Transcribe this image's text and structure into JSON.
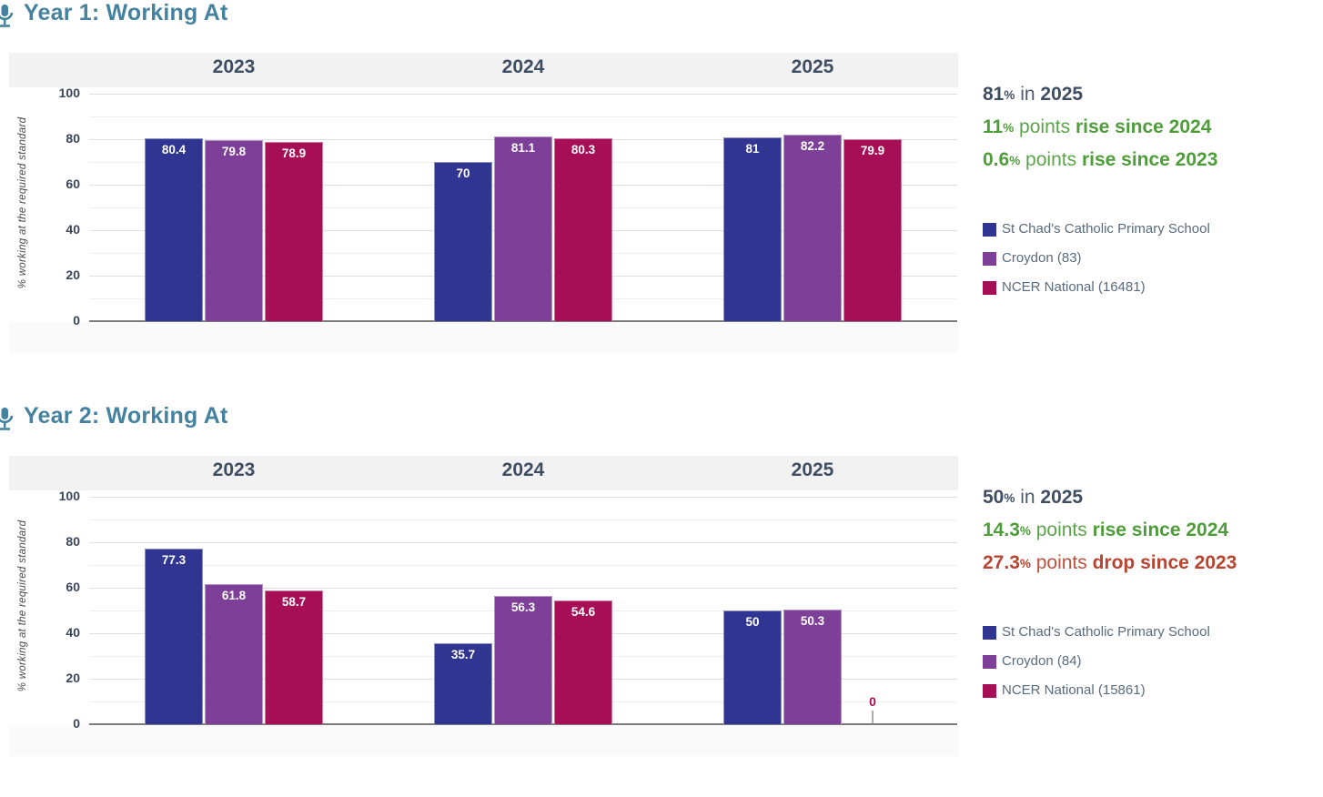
{
  "page": {
    "ylabel_color": "#4a4a4a",
    "title_color": "#44829f"
  },
  "chart_data": [
    {
      "type": "bar",
      "title": "Year 1: Working At",
      "icon": "microphone-icon",
      "ylabel": "% working at the required standard",
      "ylim": [
        0,
        100
      ],
      "yticks": [
        100,
        80,
        60,
        40,
        20,
        0
      ],
      "grid": true,
      "legend_position": "right",
      "categories": [
        "2023",
        "2024",
        "2025"
      ],
      "series": [
        {
          "name": "St Chad's Catholic Primary School",
          "color": "#2f3590",
          "values": [
            80.4,
            70,
            81
          ]
        },
        {
          "name": "Croydon (83)",
          "color": "#7d3f97",
          "values": [
            79.8,
            81.1,
            82.2
          ]
        },
        {
          "name": "NCER National (16481)",
          "color": "#a60e55",
          "values": [
            78.9,
            80.3,
            79.9
          ]
        }
      ],
      "summary_lines": [
        {
          "value": "81",
          "pct": "%",
          "middle": " in ",
          "emphasis": "2025",
          "color": "#3f4e63",
          "sentiment": "neutral"
        },
        {
          "value": "11",
          "pct": "%",
          "middle": " points ",
          "emphasis": "rise since 2024",
          "color": "#4e9d3a",
          "sentiment": "positive"
        },
        {
          "value": "0.6",
          "pct": "%",
          "middle": " points ",
          "emphasis": "rise since 2023",
          "color": "#4e9d3a",
          "sentiment": "positive"
        }
      ]
    },
    {
      "type": "bar",
      "title": "Year 2: Working At",
      "icon": "microphone-icon",
      "ylabel": "% working at the required standard",
      "ylim": [
        0,
        100
      ],
      "yticks": [
        100,
        80,
        60,
        40,
        20,
        0
      ],
      "grid": true,
      "legend_position": "right",
      "categories": [
        "2023",
        "2024",
        "2025"
      ],
      "series": [
        {
          "name": "St Chad's Catholic Primary School",
          "color": "#2f3590",
          "values": [
            77.3,
            35.7,
            50
          ]
        },
        {
          "name": "Croydon (84)",
          "color": "#7d3f97",
          "values": [
            61.8,
            56.3,
            50.3
          ]
        },
        {
          "name": "NCER National (15861)",
          "color": "#a60e55",
          "values": [
            58.7,
            54.6,
            0
          ]
        }
      ],
      "summary_lines": [
        {
          "value": "50",
          "pct": "%",
          "middle": " in ",
          "emphasis": "2025",
          "color": "#3f4e63",
          "sentiment": "neutral"
        },
        {
          "value": "14.3",
          "pct": "%",
          "middle": " points ",
          "emphasis": "rise since 2024",
          "color": "#4e9d3a",
          "sentiment": "positive"
        },
        {
          "value": "27.3",
          "pct": "%",
          "middle": " points ",
          "emphasis": "drop since 2023",
          "color": "#b8432f",
          "sentiment": "negative"
        }
      ]
    }
  ]
}
